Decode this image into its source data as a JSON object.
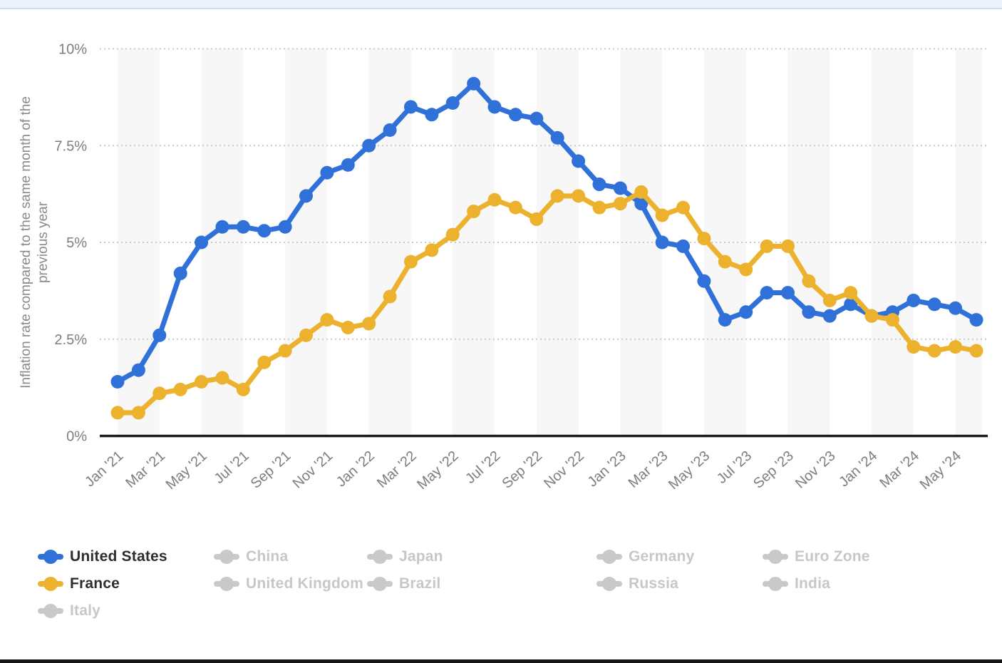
{
  "page": {
    "top_bar_color": "#e9f1fc",
    "top_bar_border_color": "#cfdef5",
    "bottom_bar_color": "#151515",
    "background_color": "#ffffff"
  },
  "chart_data": {
    "type": "line",
    "title": "",
    "ylabel": "Inflation rate compared to the same month of the previous year",
    "ylabel_lines": [
      "Inflation rate compared to the same month of the",
      "previous year"
    ],
    "ylim": [
      0,
      10
    ],
    "yticks": [
      {
        "value": 0,
        "label": "0%"
      },
      {
        "value": 2.5,
        "label": "2.5%"
      },
      {
        "value": 5,
        "label": "5%"
      },
      {
        "value": 7.5,
        "label": "7.5%"
      },
      {
        "value": 10,
        "label": "10%"
      }
    ],
    "grid": "dotted horizontal gridlines, alternating light vertical month bands",
    "band_color": "#f7f7f7",
    "gridline_color": "#c9c9c9",
    "baseline_color": "#1c1c1c",
    "axis_text_color": "#7e7e7e",
    "ylabel_color": "#8a8a8a",
    "x": [
      "Jan '21",
      "Feb '21",
      "Mar '21",
      "Apr '21",
      "May '21",
      "Jun '21",
      "Jul '21",
      "Aug '21",
      "Sep '21",
      "Oct '21",
      "Nov '21",
      "Dec '21",
      "Jan '22",
      "Feb '22",
      "Mar '22",
      "Apr '22",
      "May '22",
      "Jun '22",
      "Jul '22",
      "Aug '22",
      "Sep '22",
      "Oct '22",
      "Nov '22",
      "Dec '22",
      "Jan '23",
      "Feb '23",
      "Mar '23",
      "Apr '23",
      "May '23",
      "Jun '23",
      "Jul '23",
      "Aug '23",
      "Sep '23",
      "Oct '23",
      "Nov '23",
      "Dec '23",
      "Jan '24",
      "Feb '24",
      "Mar '24",
      "Apr '24",
      "May '24",
      "Jun '24"
    ],
    "x_tick_labels": [
      "Jan '21",
      "Mar '21",
      "May '21",
      "Jul '21",
      "Sep '21",
      "Nov '21",
      "Jan '22",
      "Mar '22",
      "May '22",
      "Jul '22",
      "Sep '22",
      "Nov '22",
      "Jan '23",
      "Mar '23",
      "May '23",
      "Jul '23",
      "Sep '23",
      "Nov '23",
      "Jan '24",
      "Mar '24",
      "May '24"
    ],
    "series": [
      {
        "name": "United States",
        "color": "#2f71d8",
        "values": [
          1.4,
          1.7,
          2.6,
          4.2,
          5.0,
          5.4,
          5.4,
          5.3,
          5.4,
          6.2,
          6.8,
          7.0,
          7.5,
          7.9,
          8.5,
          8.3,
          8.6,
          9.1,
          8.5,
          8.3,
          8.2,
          7.7,
          7.1,
          6.5,
          6.4,
          6.0,
          5.0,
          4.9,
          4.0,
          3.0,
          3.2,
          3.7,
          3.7,
          3.2,
          3.1,
          3.4,
          3.1,
          3.2,
          3.5,
          3.4,
          3.3,
          3.0
        ]
      },
      {
        "name": "France",
        "color": "#ecb22d",
        "values": [
          0.6,
          0.6,
          1.1,
          1.2,
          1.4,
          1.5,
          1.2,
          1.9,
          2.2,
          2.6,
          3.0,
          2.8,
          2.9,
          3.6,
          4.5,
          4.8,
          5.2,
          5.8,
          6.1,
          5.9,
          5.6,
          6.2,
          6.2,
          5.9,
          6.0,
          6.3,
          5.7,
          5.9,
          5.1,
          4.5,
          4.3,
          4.9,
          4.9,
          4.0,
          3.5,
          3.7,
          3.1,
          3.0,
          2.3,
          2.2,
          2.3,
          2.2
        ]
      }
    ],
    "legend_position": "bottom"
  },
  "legend": {
    "items": [
      {
        "label": "United States",
        "active": true,
        "color": "#2f71d8"
      },
      {
        "label": "China",
        "active": false,
        "color": "#c9c9c9"
      },
      {
        "label": "Japan",
        "active": false,
        "color": "#c9c9c9"
      },
      {
        "label": "Germany",
        "active": false,
        "color": "#c9c9c9"
      },
      {
        "label": "Euro Zone",
        "active": false,
        "color": "#c9c9c9"
      },
      {
        "label": "France",
        "active": true,
        "color": "#ecb22d"
      },
      {
        "label": "United Kingdom",
        "active": false,
        "color": "#c9c9c9"
      },
      {
        "label": "Brazil",
        "active": false,
        "color": "#c9c9c9"
      },
      {
        "label": "Russia",
        "active": false,
        "color": "#c9c9c9"
      },
      {
        "label": "India",
        "active": false,
        "color": "#c9c9c9"
      },
      {
        "label": "Italy",
        "active": false,
        "color": "#c9c9c9"
      }
    ],
    "active_text_color": "#2e2e2e",
    "inactive_text_color": "#c7c7c7"
  }
}
